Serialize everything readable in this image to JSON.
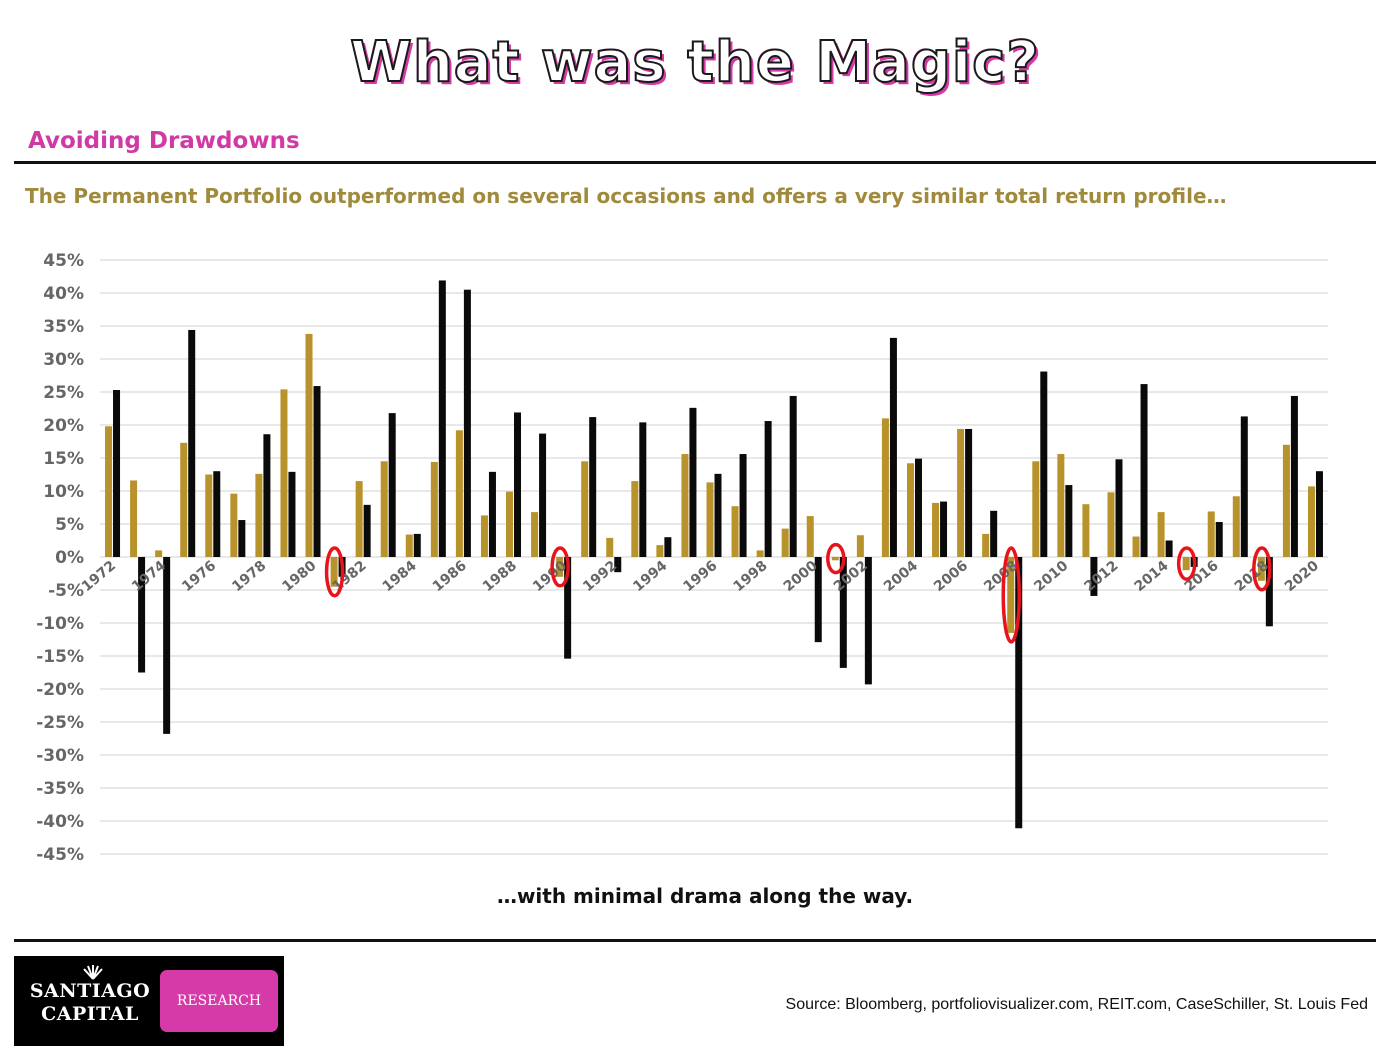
{
  "header": {
    "title": "What was the Magic?",
    "section": "Avoiding Drawdowns",
    "subtitle": "The Permanent Portfolio outperformed on several occasions and offers a very similar total return profile…"
  },
  "caption": "…with minimal drama along the way.",
  "source": "Source:  Bloomberg, portfoliovisualizer.com, REIT.com, CaseSchiller, St. Louis Fed",
  "logo": {
    "name": "SANTIAGO\nCAPITAL",
    "badge": "RESEARCH"
  },
  "colors": {
    "series_a": "#b8922a",
    "series_b": "#0a0a0a",
    "accent": "#d63aa8",
    "highlight": "#e8141c",
    "grid": "#d9d9d9"
  },
  "chart_data": {
    "type": "bar",
    "categories": [
      "1972",
      "1973",
      "1974",
      "1975",
      "1976",
      "1977",
      "1978",
      "1979",
      "1980",
      "1981",
      "1982",
      "1983",
      "1984",
      "1985",
      "1986",
      "1987",
      "1988",
      "1989",
      "1990",
      "1991",
      "1992",
      "1993",
      "1994",
      "1995",
      "1996",
      "1997",
      "1998",
      "1999",
      "2000",
      "2001",
      "2002",
      "2003",
      "2004",
      "2005",
      "2006",
      "2007",
      "2008",
      "2009",
      "2010",
      "2011",
      "2012",
      "2013",
      "2014",
      "2015",
      "2016",
      "2017",
      "2018",
      "2019",
      "2020"
    ],
    "x_tick_labels": [
      "1972",
      "1974",
      "1976",
      "1978",
      "1980",
      "1982",
      "1984",
      "1986",
      "1988",
      "1990",
      "1992",
      "1994",
      "1996",
      "1998",
      "2000",
      "2002",
      "2004",
      "2006",
      "2008",
      "2010",
      "2012",
      "2014",
      "2016",
      "2018",
      "2020"
    ],
    "series": [
      {
        "values": [
          19.8,
          11.6,
          1.0,
          17.3,
          12.5,
          9.6,
          12.6,
          25.4,
          33.8,
          -4.5,
          11.5,
          14.5,
          3.4,
          14.4,
          19.2,
          6.3,
          9.9,
          6.8,
          -3.0,
          14.5,
          2.9,
          11.5,
          1.8,
          15.6,
          11.3,
          7.7,
          1.0,
          4.3,
          6.2,
          -0.5,
          3.3,
          21.0,
          14.2,
          8.2,
          19.4,
          3.5,
          -11.5,
          14.5,
          15.6,
          8.0,
          9.8,
          3.1,
          6.8,
          -2.0,
          6.9,
          9.2,
          -3.6,
          17.0,
          10.7
        ]
      },
      {
        "values": [
          25.3,
          -17.5,
          -26.8,
          34.4,
          13.0,
          5.6,
          18.6,
          12.9,
          25.9,
          -3.0,
          7.9,
          21.8,
          3.5,
          41.9,
          40.5,
          12.9,
          21.9,
          18.7,
          -15.4,
          21.2,
          -2.3,
          20.4,
          3.0,
          22.6,
          12.6,
          15.6,
          20.6,
          24.4,
          -12.9,
          -16.8,
          -19.3,
          33.2,
          14.9,
          8.4,
          19.4,
          7.0,
          -41.1,
          28.1,
          10.9,
          -5.9,
          14.8,
          26.2,
          2.5,
          -1.5,
          5.3,
          21.3,
          -10.5,
          24.4,
          13.0
        ]
      }
    ],
    "highlighted_years": [
      "1981",
      "1990",
      "2001",
      "2008",
      "2015",
      "2018"
    ],
    "ylim": [
      -45,
      45
    ],
    "y_ticks": [
      "45%",
      "40%",
      "35%",
      "30%",
      "25%",
      "20%",
      "15%",
      "10%",
      "5%",
      "0%",
      "-5%",
      "-10%",
      "-15%",
      "-20%",
      "-25%",
      "-30%",
      "-35%",
      "-40%",
      "-45%"
    ],
    "grid": true,
    "legend": "none",
    "title": "",
    "xlabel": "",
    "ylabel": ""
  }
}
